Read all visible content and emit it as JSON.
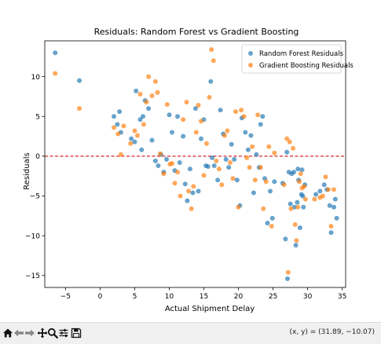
{
  "chart_data": {
    "type": "scatter",
    "title": "Residuals: Random Forest vs Gradient Boosting",
    "xlabel": "Actual Shipment Delay",
    "ylabel": "Residuals",
    "xlim": [
      -8,
      35.5
    ],
    "ylim": [
      -16.5,
      14.5
    ],
    "xticks": [
      -5,
      0,
      5,
      10,
      15,
      20,
      25,
      30,
      35
    ],
    "yticks": [
      -15,
      -10,
      -5,
      0,
      5,
      10
    ],
    "grid": false,
    "legend_position": "top-right",
    "reference_line": {
      "y": 0,
      "color": "#d62728",
      "style": "dashed"
    },
    "series": [
      {
        "name": "Random Forest Residuals",
        "color": "#1f77b4",
        "points": [
          [
            -6.5,
            13.0
          ],
          [
            -3.0,
            9.5
          ],
          [
            2.0,
            5.0
          ],
          [
            2.5,
            4.0
          ],
          [
            2.8,
            5.6
          ],
          [
            3.0,
            3.0
          ],
          [
            4.5,
            2.2
          ],
          [
            5.0,
            1.8
          ],
          [
            5.2,
            8.2
          ],
          [
            5.8,
            4.6
          ],
          [
            6.0,
            0.8
          ],
          [
            6.2,
            5.0
          ],
          [
            6.5,
            7.0
          ],
          [
            7.0,
            6.0
          ],
          [
            7.5,
            2.0
          ],
          [
            8.0,
            -0.6
          ],
          [
            8.4,
            -1.2
          ],
          [
            8.8,
            0.2
          ],
          [
            9.2,
            -2.0
          ],
          [
            9.6,
            -0.4
          ],
          [
            10.0,
            5.2
          ],
          [
            10.4,
            3.0
          ],
          [
            10.8,
            -1.8
          ],
          [
            11.2,
            5.0
          ],
          [
            11.5,
            -0.8
          ],
          [
            12.0,
            2.5
          ],
          [
            12.3,
            -3.5
          ],
          [
            12.6,
            -5.6
          ],
          [
            13.0,
            -1.6
          ],
          [
            13.4,
            -4.6
          ],
          [
            13.8,
            6.0
          ],
          [
            14.2,
            -4.4
          ],
          [
            14.6,
            2.2
          ],
          [
            15.0,
            4.6
          ],
          [
            15.3,
            -1.2
          ],
          [
            15.6,
            -1.3
          ],
          [
            16.0,
            9.4
          ],
          [
            16.2,
            -0.2
          ],
          [
            16.5,
            -1.2
          ],
          [
            17.0,
            -3.0
          ],
          [
            17.4,
            5.8
          ],
          [
            17.8,
            2.8
          ],
          [
            18.2,
            -0.4
          ],
          [
            18.6,
            -1.4
          ],
          [
            19.0,
            1.5
          ],
          [
            19.4,
            -0.4
          ],
          [
            19.8,
            -3.0
          ],
          [
            20.2,
            -6.2
          ],
          [
            20.5,
            4.8
          ],
          [
            21.0,
            3.0
          ],
          [
            21.4,
            0.8
          ],
          [
            21.8,
            2.6
          ],
          [
            22.2,
            -4.6
          ],
          [
            22.6,
            0.2
          ],
          [
            23.0,
            -1.4
          ],
          [
            23.2,
            4.0
          ],
          [
            23.5,
            5.0
          ],
          [
            23.8,
            -2.8
          ],
          [
            24.2,
            -8.4
          ],
          [
            24.6,
            -4.4
          ],
          [
            24.9,
            -7.8
          ],
          [
            25.2,
            -3.2
          ],
          [
            26.4,
            -3.4
          ],
          [
            26.8,
            -10.4
          ],
          [
            27.0,
            0.5
          ],
          [
            27.1,
            -15.4
          ],
          [
            27.3,
            -2.0
          ],
          [
            27.5,
            -6.0
          ],
          [
            27.7,
            -2.2
          ],
          [
            28.0,
            -2.0
          ],
          [
            28.1,
            -6.4
          ],
          [
            28.3,
            -11.2
          ],
          [
            28.5,
            -5.8
          ],
          [
            28.6,
            -1.6
          ],
          [
            28.7,
            -3.0
          ],
          [
            28.9,
            -9.0
          ],
          [
            29.1,
            -4.8
          ],
          [
            29.2,
            -1.7
          ],
          [
            29.3,
            -5.0
          ],
          [
            29.4,
            -6.4
          ],
          [
            29.6,
            -3.6
          ],
          [
            31.2,
            -4.8
          ],
          [
            31.8,
            -4.4
          ],
          [
            32.4,
            -3.6
          ],
          [
            32.8,
            -4.2
          ],
          [
            33.2,
            -6.2
          ],
          [
            33.4,
            -9.6
          ],
          [
            33.8,
            -6.4
          ],
          [
            34.0,
            -5.4
          ],
          [
            34.2,
            -7.8
          ]
        ]
      },
      {
        "name": "Gradient Boosting Residuals",
        "color": "#ff7f0e",
        "points": [
          [
            -6.5,
            10.4
          ],
          [
            -3.0,
            6.0
          ],
          [
            2.0,
            3.6
          ],
          [
            2.6,
            2.8
          ],
          [
            3.0,
            0.2
          ],
          [
            3.4,
            3.8
          ],
          [
            4.4,
            1.6
          ],
          [
            5.0,
            3.2
          ],
          [
            5.4,
            2.6
          ],
          [
            5.8,
            7.8
          ],
          [
            6.3,
            4.0
          ],
          [
            6.7,
            6.8
          ],
          [
            7.0,
            10.0
          ],
          [
            7.5,
            7.6
          ],
          [
            8.0,
            9.4
          ],
          [
            8.3,
            8.0
          ],
          [
            8.7,
            0.3
          ],
          [
            9.2,
            -2.2
          ],
          [
            9.7,
            6.5
          ],
          [
            10.1,
            -1.0
          ],
          [
            10.4,
            -0.9
          ],
          [
            10.8,
            -3.4
          ],
          [
            11.2,
            -2.0
          ],
          [
            11.6,
            -5.0
          ],
          [
            12.0,
            4.6
          ],
          [
            12.5,
            6.8
          ],
          [
            12.8,
            -4.4
          ],
          [
            13.2,
            -6.6
          ],
          [
            13.5,
            -3.8
          ],
          [
            13.9,
            3.0
          ],
          [
            14.2,
            6.4
          ],
          [
            14.6,
            4.4
          ],
          [
            15.0,
            -2.4
          ],
          [
            15.4,
            1.6
          ],
          [
            15.8,
            7.4
          ],
          [
            16.1,
            13.4
          ],
          [
            16.4,
            12.0
          ],
          [
            16.8,
            -0.6
          ],
          [
            17.2,
            -1.6
          ],
          [
            17.6,
            -3.6
          ],
          [
            18.0,
            2.6
          ],
          [
            18.4,
            3.2
          ],
          [
            18.8,
            -0.8
          ],
          [
            19.2,
            -2.8
          ],
          [
            19.6,
            5.6
          ],
          [
            20.0,
            -6.4
          ],
          [
            20.4,
            5.8
          ],
          [
            20.8,
            5.0
          ],
          [
            21.2,
            -0.2
          ],
          [
            21.6,
            -1.4
          ],
          [
            22.0,
            1.2
          ],
          [
            22.4,
            -3.0
          ],
          [
            22.8,
            5.2
          ],
          [
            23.2,
            -1.4
          ],
          [
            23.6,
            -6.6
          ],
          [
            24.0,
            -3.2
          ],
          [
            24.4,
            1.2
          ],
          [
            24.8,
            -8.8
          ],
          [
            25.2,
            0.4
          ],
          [
            26.6,
            -3.6
          ],
          [
            27.0,
            2.2
          ],
          [
            27.2,
            -14.6
          ],
          [
            27.4,
            1.8
          ],
          [
            27.6,
            -6.6
          ],
          [
            27.9,
            1.0
          ],
          [
            28.2,
            -8.6
          ],
          [
            28.4,
            -10.6
          ],
          [
            28.6,
            -6.4
          ],
          [
            28.8,
            -3.2
          ],
          [
            29.0,
            -2.2
          ],
          [
            29.2,
            -4.0
          ],
          [
            29.5,
            -3.8
          ],
          [
            29.7,
            -5.4
          ],
          [
            31.0,
            -5.4
          ],
          [
            31.8,
            -5.2
          ],
          [
            32.2,
            -5.0
          ],
          [
            32.6,
            -2.6
          ],
          [
            33.0,
            -4.2
          ],
          [
            33.4,
            -8.8
          ],
          [
            33.8,
            -4.2
          ]
        ]
      }
    ]
  },
  "toolbar": {
    "coords": "(x, y) = (31.89, −10.07)",
    "buttons": [
      "home-icon",
      "back-icon",
      "forward-icon",
      "pan-icon",
      "zoom-icon",
      "configure-subplots-icon",
      "save-icon"
    ]
  }
}
